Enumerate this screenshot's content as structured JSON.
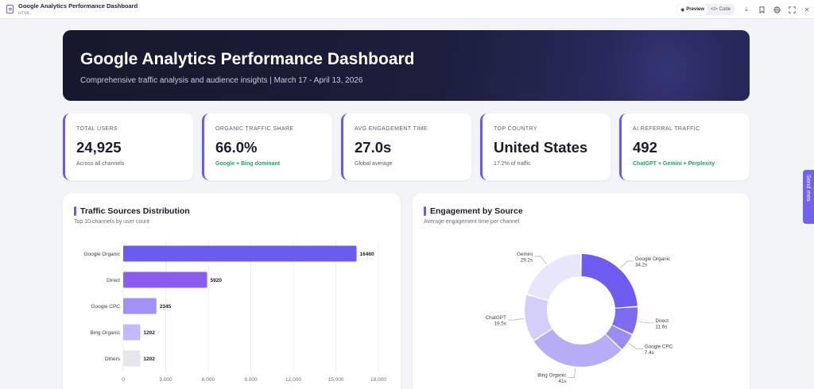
{
  "app": {
    "title": "Google Analytics Performance Dashboard",
    "subtitle": "HTML",
    "preview_label": "Preview",
    "code_label": "Code",
    "icons": [
      "download-icon",
      "bookmark-icon",
      "globe-icon",
      "fullscreen-icon",
      "close-icon"
    ]
  },
  "hero": {
    "title": "Google Analytics Performance Dashboard",
    "subtitle": "Comprehensive traffic analysis and audience insights | March 17 - April 13, 2026"
  },
  "kpis": [
    {
      "label": "Total Users",
      "value": "24,925",
      "note": "Across all channels",
      "note_color": "default"
    },
    {
      "label": "Organic Traffic Share",
      "value": "66.0%",
      "note": "Google + Bing dominant",
      "note_color": "green"
    },
    {
      "label": "Avg Engagement Time",
      "value": "27.0s",
      "note": "Global average",
      "note_color": "default"
    },
    {
      "label": "Top Country",
      "value": "United States",
      "note": "17.2% of traffic",
      "note_color": "default"
    },
    {
      "label": "AI Referral Traffic",
      "value": "492",
      "note": "ChatGPT + Gemini + Perplexity",
      "note_color": "green"
    }
  ],
  "colors": {
    "accent": "#6a5ae8",
    "green": "#1ea465",
    "hero_dark": "#16182c"
  },
  "send_tab": {
    "label": "Send mes"
  },
  "chart_data": [
    {
      "type": "bar",
      "orientation": "horizontal",
      "title": "Traffic Sources Distribution",
      "subtitle": "Top 10 channels by user count",
      "categories": [
        "Google Organic",
        "Direct",
        "Google CPC",
        "Bing Organic",
        "Others"
      ],
      "values": [
        16460,
        5920,
        2345,
        1202,
        1202
      ],
      "value_labels": [
        "16460",
        "5920",
        "2345",
        "1202",
        "1202"
      ],
      "colors": [
        "#6b5cf0",
        "#8b5cf0",
        "#a192f5",
        "#c3b8fa",
        "#e6e6ec"
      ],
      "xlim": [
        0,
        18000
      ],
      "xticks": [
        0,
        3000,
        6000,
        9000,
        12000,
        15000,
        18000
      ],
      "xtick_labels": [
        "0",
        "3,000",
        "6,000",
        "9,000",
        "12,000",
        "15,000",
        "18,000"
      ],
      "grid": true
    },
    {
      "type": "pie",
      "donut": true,
      "title": "Engagement by Source",
      "subtitle": "Average engagement time per channel",
      "labels": [
        "Google Organic",
        "Direct",
        "Google CPC",
        "Bing Organic",
        "ChatGPT",
        "Gemini"
      ],
      "values": [
        34.2,
        11.6,
        7.4,
        41,
        19.5,
        29.2
      ],
      "value_labels": [
        "34.2s",
        "11.6s",
        "7.4s",
        "41s",
        "19.5s",
        "29.2s"
      ],
      "colors": [
        "#6d5ced",
        "#7d6cf0",
        "#9a8cf3",
        "#b7adf6",
        "#d4cffa",
        "#e8e6fb"
      ]
    }
  ]
}
